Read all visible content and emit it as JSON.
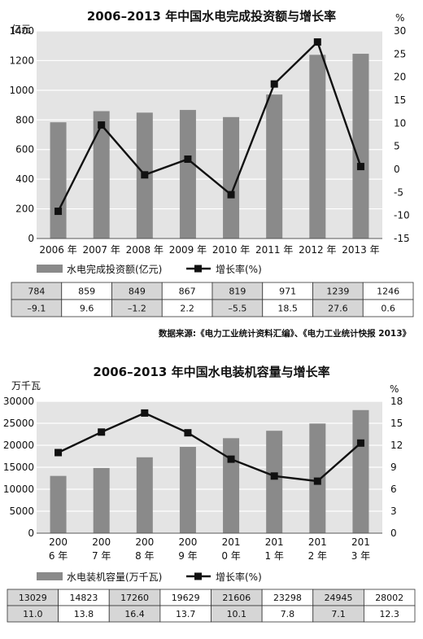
{
  "chart_data": [
    {
      "type": "bar+line",
      "title": "2006–2013 年中国水电完成投资额与增长率",
      "categories": [
        "2006 年",
        "2007 年",
        "2008 年",
        "2009 年",
        "2010 年",
        "2011 年",
        "2012 年",
        "2013 年"
      ],
      "y_left_unit": "亿元",
      "y_right_unit": "%",
      "y_left_ticks": [
        "0",
        "200",
        "400",
        "600",
        "800",
        "1000",
        "1200",
        "1400"
      ],
      "y_right_ticks": [
        "-15",
        "-10",
        "-5",
        "0",
        "5",
        "10",
        "15",
        "20",
        "25",
        "30"
      ],
      "ylim_left": [
        0,
        1400
      ],
      "ylim_right": [
        -15,
        30
      ],
      "series": [
        {
          "name": "水电完成投资额(亿元)",
          "type": "bar",
          "axis": "left",
          "values": [
            784,
            859,
            849,
            867,
            819,
            971,
            1239,
            1246
          ]
        },
        {
          "name": "增长率(%)",
          "type": "line",
          "axis": "right",
          "values": [
            -9.1,
            9.6,
            -1.2,
            2.2,
            -5.5,
            18.5,
            27.6,
            0.6
          ]
        }
      ],
      "table": [
        [
          "784",
          "859",
          "849",
          "867",
          "819",
          "971",
          "1239",
          "1246"
        ],
        [
          "–9.1",
          "9.6",
          "–1.2",
          "2.2",
          "–5.5",
          "18.5",
          "27.6",
          "0.6"
        ]
      ],
      "source": "数据来源:《电力工业统计资料汇编》、《电力工业统计快报 2013》",
      "grid": true,
      "legend": "bottom"
    },
    {
      "type": "bar+line",
      "title": "2006–2013 年中国水电装机容量与增长率",
      "categories": [
        "2006 年",
        "2007 年",
        "2008 年",
        "2009 年",
        "2010 年",
        "2011 年",
        "2012 年",
        "2013 年"
      ],
      "category_lines": [
        [
          "200",
          "6 年"
        ],
        [
          "200",
          "7 年"
        ],
        [
          "200",
          "8 年"
        ],
        [
          "200",
          "9 年"
        ],
        [
          "201",
          "0 年"
        ],
        [
          "201",
          "1 年"
        ],
        [
          "201",
          "2 年"
        ],
        [
          "201",
          "3 年"
        ]
      ],
      "y_left_unit": "万千瓦",
      "y_right_unit": "%",
      "y_left_ticks": [
        "0",
        "5000",
        "10000",
        "15000",
        "20000",
        "25000",
        "30000"
      ],
      "y_right_ticks": [
        "0",
        "3",
        "6",
        "9",
        "12",
        "15",
        "18"
      ],
      "ylim_left": [
        0,
        30000
      ],
      "ylim_right": [
        0,
        18
      ],
      "series": [
        {
          "name": "水电装机容量(万千瓦)",
          "type": "bar",
          "axis": "left",
          "values": [
            13029,
            14823,
            17260,
            19629,
            21606,
            23298,
            24945,
            28002
          ]
        },
        {
          "name": "增长率(%)",
          "type": "line",
          "axis": "right",
          "values": [
            11.0,
            13.8,
            16.4,
            13.7,
            10.1,
            7.8,
            7.1,
            12.3
          ]
        }
      ],
      "table": [
        [
          "13029",
          "14823",
          "17260",
          "19629",
          "21606",
          "23298",
          "24945",
          "28002"
        ],
        [
          "11.0",
          "13.8",
          "16.4",
          "13.7",
          "10.1",
          "7.8",
          "7.1",
          "12.3"
        ]
      ],
      "grid": true,
      "legend": "bottom"
    }
  ],
  "colors": {
    "plot_bg": "#e4e4e4",
    "bar": "#8a8a8a",
    "line": "#111111",
    "grid": "#ffffff",
    "cell_shaded": "#d6d6d6"
  }
}
